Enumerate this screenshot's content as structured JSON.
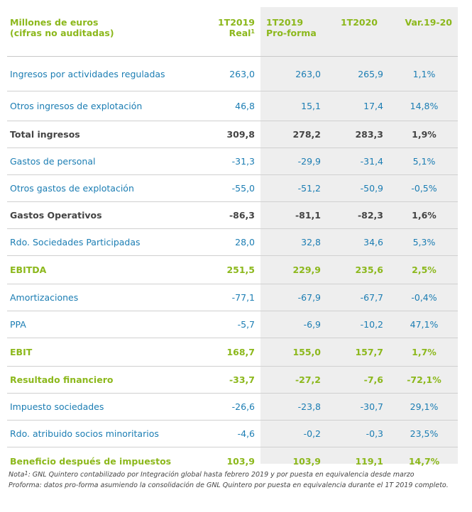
{
  "header": {
    "label_line1": "Millones de euros",
    "label_line2": "(cifras no auditadas)",
    "col1_line1": "1T2019",
    "col1_line2": "Real",
    "col1_sup": "1",
    "col2_line1": "1T2019",
    "col2_line2": "Pro-forma",
    "col3": "1T2020",
    "col4": "Var.19-20"
  },
  "rows": [
    {
      "label": "Ingresos por actividades reguladas",
      "v1": "263,0",
      "v2": "263,0",
      "v3": "265,9",
      "v4": "1,1%"
    },
    {
      "label": "Otros ingresos de explotación",
      "v1": "46,8",
      "v2": "15,1",
      "v3": "17,4",
      "v4": "14,8%"
    },
    {
      "label": "Total ingresos",
      "v1": "309,8",
      "v2": "278,2",
      "v3": "283,3",
      "v4": "1,9%"
    },
    {
      "label": "Gastos de personal",
      "v1": "-31,3",
      "v2": "-29,9",
      "v3": "-31,4",
      "v4": "5,1%"
    },
    {
      "label": "Otros gastos de explotación",
      "v1": "-55,0",
      "v2": "-51,2",
      "v3": "-50,9",
      "v4": "-0,5%"
    },
    {
      "label": "Gastos Operativos",
      "v1": "-86,3",
      "v2": "-81,1",
      "v3": "-82,3",
      "v4": "1,6%"
    },
    {
      "label": "Rdo. Sociedades Participadas",
      "v1": "28,0",
      "v2": "32,8",
      "v3": "34,6",
      "v4": "5,3%"
    },
    {
      "label": "EBITDA",
      "v1": "251,5",
      "v2": "229,9",
      "v3": "235,6",
      "v4": "2,5%"
    },
    {
      "label": "Amortizaciones",
      "v1": "-77,1",
      "v2": "-67,9",
      "v3": "-67,7",
      "v4": "-0,4%"
    },
    {
      "label": "PPA",
      "v1": "-5,7",
      "v2": "-6,9",
      "v3": "-10,2",
      "v4": "47,1%"
    },
    {
      "label": "EBIT",
      "v1": "168,7",
      "v2": "155,0",
      "v3": "157,7",
      "v4": "1,7%"
    },
    {
      "label": "Resultado financiero",
      "v1": "-33,7",
      "v2": "-27,2",
      "v3": "-7,6",
      "v4": "-72,1%"
    },
    {
      "label": "Impuesto sociedades",
      "v1": "-26,6",
      "v2": "-23,8",
      "v3": "-30,7",
      "v4": "29,1%"
    },
    {
      "label": "Rdo. atribuido socios minoritarios",
      "v1": "-4,6",
      "v2": "-0,2",
      "v3": "-0,3",
      "v4": "23,5%"
    },
    {
      "label": "Beneficio después de impuestos",
      "v1": "103,9",
      "v2": "103,9",
      "v3": "119,1",
      "v4": "14,7%"
    }
  ],
  "notes": {
    "note_prefix": "Nota",
    "note_sup": "1",
    "note_text": ": GNL Quintero contabilizado por Integración global hasta febrero 2019 y por puesta en equivalencia desde marzo",
    "proforma": "Proforma: datos pro-forma asumiendo la consolidación de GNL Quintero por puesta en equivalencia durante el 1T 2019 completo."
  },
  "colors": {
    "green": "#8cb81c",
    "blue": "#1b7db3",
    "dark": "#444444",
    "shade": "#eeeeee"
  }
}
